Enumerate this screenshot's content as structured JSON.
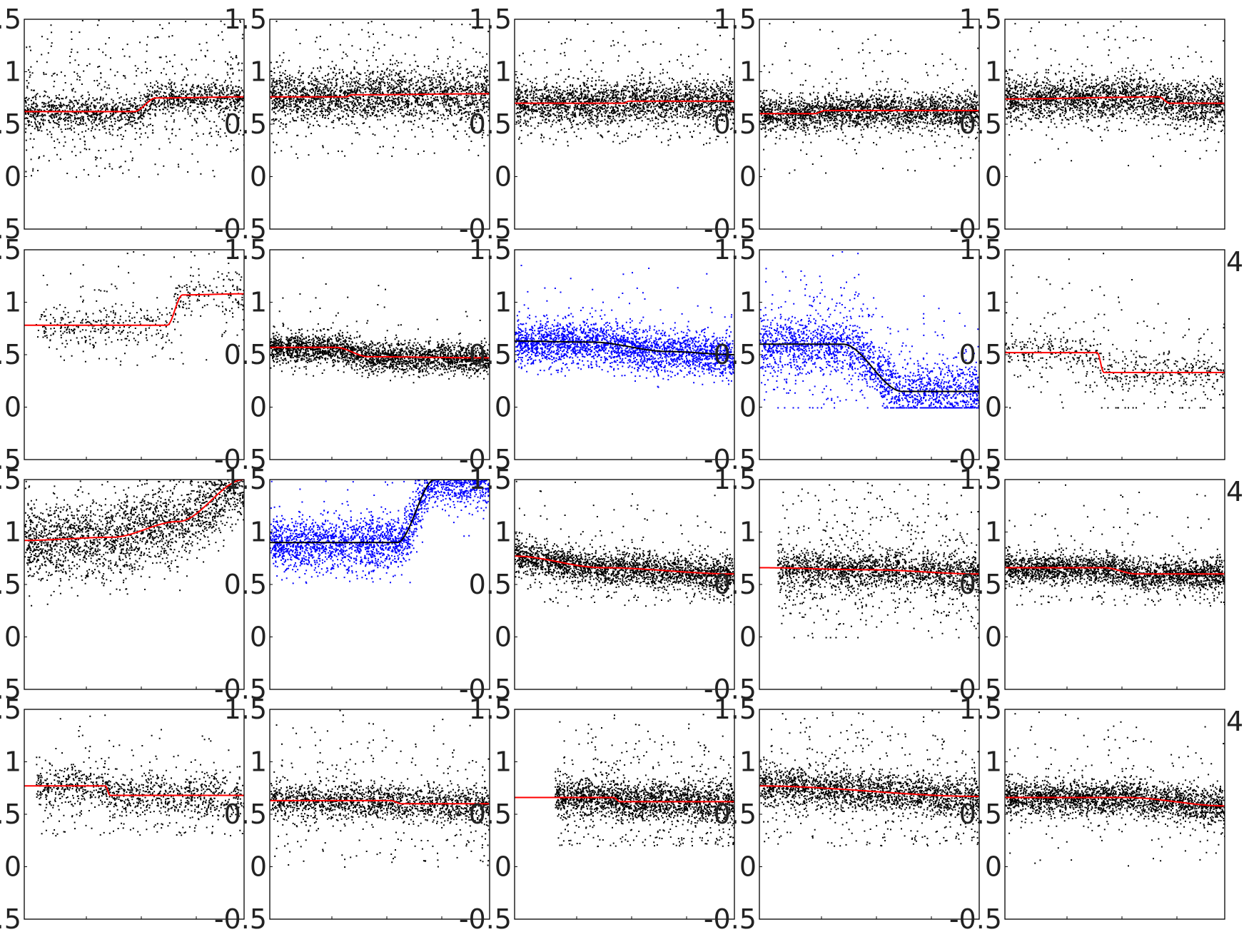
{
  "figure": {
    "rows": 4,
    "cols": 5,
    "point_count_base": 2600
  },
  "colors": {
    "points_default": "#000000",
    "points_highlight": "#0000ff",
    "fit_default": "#ff0000",
    "fit_highlight": "#000000",
    "axes": "#000000",
    "text": "#222222"
  },
  "chart_data": {
    "type": "scatter",
    "layout": "4x5 grid of small-multiple panels",
    "ylim": [
      -0.5,
      1.5
    ],
    "xlim": [
      0,
      1
    ],
    "yticks": [
      -0.5,
      0,
      0.5,
      1,
      1.5
    ],
    "ytick_labels": [
      "-0.5",
      "0",
      "0.5",
      "1",
      "1.5"
    ],
    "partial_tick_labels": {
      "right_column_rows_2_to_4": "4"
    },
    "grid": false,
    "panels": [
      {
        "row": 1,
        "col": 1,
        "point_color": "black",
        "fit_color": "red",
        "density": 0.7,
        "x_range": [
          0,
          1
        ],
        "fit": [
          [
            0,
            0.62
          ],
          [
            0.5,
            0.62
          ],
          [
            0.6,
            0.75
          ],
          [
            1,
            0.76
          ]
        ],
        "spread": 0.07,
        "outlier_band": [
          0.0,
          1.5
        ],
        "outlier_frac": 0.35
      },
      {
        "row": 1,
        "col": 2,
        "point_color": "black",
        "fit_color": "red",
        "density": 1.6,
        "x_range": [
          0,
          1
        ],
        "fit": [
          [
            0,
            0.76
          ],
          [
            0.35,
            0.76
          ],
          [
            0.37,
            0.78
          ],
          [
            1,
            0.79
          ]
        ],
        "spread": 0.12,
        "outlier_band": [
          0.2,
          1.5
        ],
        "outlier_frac": 0.15
      },
      {
        "row": 1,
        "col": 3,
        "point_color": "black",
        "fit_color": "red",
        "density": 1.6,
        "x_range": [
          0,
          1
        ],
        "fit": [
          [
            0,
            0.7
          ],
          [
            0.5,
            0.7
          ],
          [
            0.52,
            0.72
          ],
          [
            1,
            0.72
          ]
        ],
        "spread": 0.1,
        "outlier_band": [
          0.3,
          1.5
        ],
        "outlier_frac": 0.12
      },
      {
        "row": 1,
        "col": 4,
        "point_color": "black",
        "fit_color": "red",
        "density": 1.4,
        "x_range": [
          0,
          1
        ],
        "fit": [
          [
            0,
            0.6
          ],
          [
            0.25,
            0.6
          ],
          [
            0.3,
            0.63
          ],
          [
            1,
            0.63
          ]
        ],
        "spread": 0.08,
        "outlier_band": [
          0.0,
          1.5
        ],
        "outlier_frac": 0.1
      },
      {
        "row": 1,
        "col": 5,
        "point_color": "black",
        "fit_color": "red",
        "density": 1.4,
        "x_range": [
          0,
          1
        ],
        "fit": [
          [
            0,
            0.74
          ],
          [
            0.7,
            0.76
          ],
          [
            0.75,
            0.7
          ],
          [
            1,
            0.7
          ]
        ],
        "spread": 0.1,
        "outlier_band": [
          0.1,
          1.5
        ],
        "outlier_frac": 0.1
      },
      {
        "row": 2,
        "col": 1,
        "point_color": "black",
        "fit_color": "red",
        "density": 0.2,
        "x_range": [
          0.05,
          1
        ],
        "fit": [
          [
            0,
            0.78
          ],
          [
            0.65,
            0.78
          ],
          [
            0.72,
            1.07
          ],
          [
            1,
            1.08
          ]
        ],
        "spread": 0.1,
        "outlier_band": [
          0.4,
          1.5
        ],
        "outlier_frac": 0.2
      },
      {
        "row": 2,
        "col": 2,
        "point_color": "black",
        "fit_color": "red",
        "density": 1.2,
        "x_range": [
          0,
          1
        ],
        "fit": [
          [
            0,
            0.57
          ],
          [
            0.3,
            0.57
          ],
          [
            0.45,
            0.48
          ],
          [
            1,
            0.47
          ]
        ],
        "spread": 0.07,
        "outlier_band": [
          0.3,
          1.5
        ],
        "outlier_frac": 0.04
      },
      {
        "row": 2,
        "col": 3,
        "point_color": "blue",
        "fit_color": "black",
        "density": 1.7,
        "x_range": [
          0,
          1
        ],
        "fit": [
          [
            0,
            0.63
          ],
          [
            0.35,
            0.62
          ],
          [
            0.7,
            0.53
          ],
          [
            1,
            0.5
          ]
        ],
        "spread": 0.1,
        "outlier_band": [
          0.3,
          1.5
        ],
        "outlier_frac": 0.05
      },
      {
        "row": 2,
        "col": 4,
        "point_color": "blue",
        "fit_color": "black",
        "density": 1.3,
        "x_range": [
          0,
          1
        ],
        "fit": [
          [
            0,
            0.6
          ],
          [
            0.38,
            0.6
          ],
          [
            0.65,
            0.15
          ],
          [
            1,
            0.15
          ]
        ],
        "spread": 0.12,
        "outlier_band": [
          0.0,
          1.5
        ],
        "outlier_frac": 0.25,
        "floor_zero": true
      },
      {
        "row": 2,
        "col": 5,
        "point_color": "black",
        "fit_color": "red",
        "density": 0.25,
        "x_range": [
          0,
          1
        ],
        "fit": [
          [
            0,
            0.52
          ],
          [
            0.42,
            0.52
          ],
          [
            0.45,
            0.33
          ],
          [
            1,
            0.33
          ]
        ],
        "spread": 0.08,
        "outlier_band": [
          0.0,
          1.5
        ],
        "outlier_frac": 0.35,
        "floor_zero": true
      },
      {
        "row": 3,
        "col": 1,
        "point_color": "black",
        "fit_color": "red",
        "density": 0.9,
        "x_range": [
          0,
          1
        ],
        "fit": [
          [
            0,
            0.92
          ],
          [
            0.4,
            0.95
          ],
          [
            0.7,
            1.1
          ],
          [
            1,
            1.5
          ]
        ],
        "spread": 0.18,
        "outlier_band": [
          0.3,
          1.5
        ],
        "outlier_frac": 0.05
      },
      {
        "row": 3,
        "col": 2,
        "point_color": "blue",
        "fit_color": "black",
        "density": 1.0,
        "x_range": [
          0,
          1
        ],
        "fit": [
          [
            0,
            0.9
          ],
          [
            0.58,
            0.9
          ],
          [
            0.75,
            1.5
          ],
          [
            1,
            1.5
          ]
        ],
        "spread": 0.12,
        "outlier_band": [
          0.5,
          1.5
        ],
        "outlier_frac": 0.05
      },
      {
        "row": 3,
        "col": 3,
        "point_color": "black",
        "fit_color": "red",
        "density": 1.0,
        "x_range": [
          0,
          1
        ],
        "fit": [
          [
            0,
            0.77
          ],
          [
            0.4,
            0.66
          ],
          [
            1,
            0.6
          ]
        ],
        "spread": 0.08,
        "outlier_band": [
          0.3,
          1.5
        ],
        "outlier_frac": 0.08
      },
      {
        "row": 3,
        "col": 4,
        "point_color": "black",
        "fit_color": "red",
        "density": 0.9,
        "x_range": [
          0.08,
          1
        ],
        "fit": [
          [
            0,
            0.66
          ],
          [
            0.5,
            0.64
          ],
          [
            1,
            0.6
          ]
        ],
        "spread": 0.08,
        "outlier_band": [
          0.0,
          1.5
        ],
        "outlier_frac": 0.3,
        "floor_zero": true
      },
      {
        "row": 3,
        "col": 5,
        "point_color": "black",
        "fit_color": "red",
        "density": 1.0,
        "x_range": [
          0,
          1
        ],
        "fit": [
          [
            0,
            0.66
          ],
          [
            0.45,
            0.66
          ],
          [
            0.6,
            0.6
          ],
          [
            1,
            0.6
          ]
        ],
        "spread": 0.07,
        "outlier_band": [
          0.3,
          1.5
        ],
        "outlier_frac": 0.07
      },
      {
        "row": 4,
        "col": 1,
        "point_color": "black",
        "fit_color": "red",
        "density": 0.45,
        "x_range": [
          0.05,
          1
        ],
        "fit": [
          [
            0,
            0.77
          ],
          [
            0.37,
            0.77
          ],
          [
            0.39,
            0.68
          ],
          [
            1,
            0.68
          ]
        ],
        "spread": 0.1,
        "outlier_band": [
          0.3,
          1.5
        ],
        "outlier_frac": 0.2
      },
      {
        "row": 4,
        "col": 2,
        "point_color": "black",
        "fit_color": "red",
        "density": 0.7,
        "x_range": [
          0,
          1
        ],
        "fit": [
          [
            0,
            0.63
          ],
          [
            0.55,
            0.63
          ],
          [
            0.6,
            0.6
          ],
          [
            1,
            0.6
          ]
        ],
        "spread": 0.08,
        "outlier_band": [
          0.0,
          1.5
        ],
        "outlier_frac": 0.2
      },
      {
        "row": 4,
        "col": 3,
        "point_color": "black",
        "fit_color": "red",
        "density": 0.9,
        "x_range": [
          0.18,
          1
        ],
        "fit": [
          [
            0,
            0.66
          ],
          [
            0.45,
            0.66
          ],
          [
            0.48,
            0.62
          ],
          [
            1,
            0.62
          ]
        ],
        "spread": 0.09,
        "outlier_band": [
          0.2,
          1.5
        ],
        "outlier_frac": 0.2
      },
      {
        "row": 4,
        "col": 4,
        "point_color": "black",
        "fit_color": "red",
        "density": 0.9,
        "x_range": [
          0,
          1
        ],
        "fit": [
          [
            0,
            0.77
          ],
          [
            1,
            0.67
          ]
        ],
        "spread": 0.09,
        "outlier_band": [
          0.2,
          1.5
        ],
        "outlier_frac": 0.2
      },
      {
        "row": 4,
        "col": 5,
        "point_color": "black",
        "fit_color": "red",
        "density": 1.0,
        "x_range": [
          0,
          1
        ],
        "fit": [
          [
            0,
            0.66
          ],
          [
            0.55,
            0.66
          ],
          [
            1,
            0.58
          ]
        ],
        "spread": 0.08,
        "outlier_band": [
          0.0,
          1.5
        ],
        "outlier_frac": 0.1
      }
    ]
  }
}
